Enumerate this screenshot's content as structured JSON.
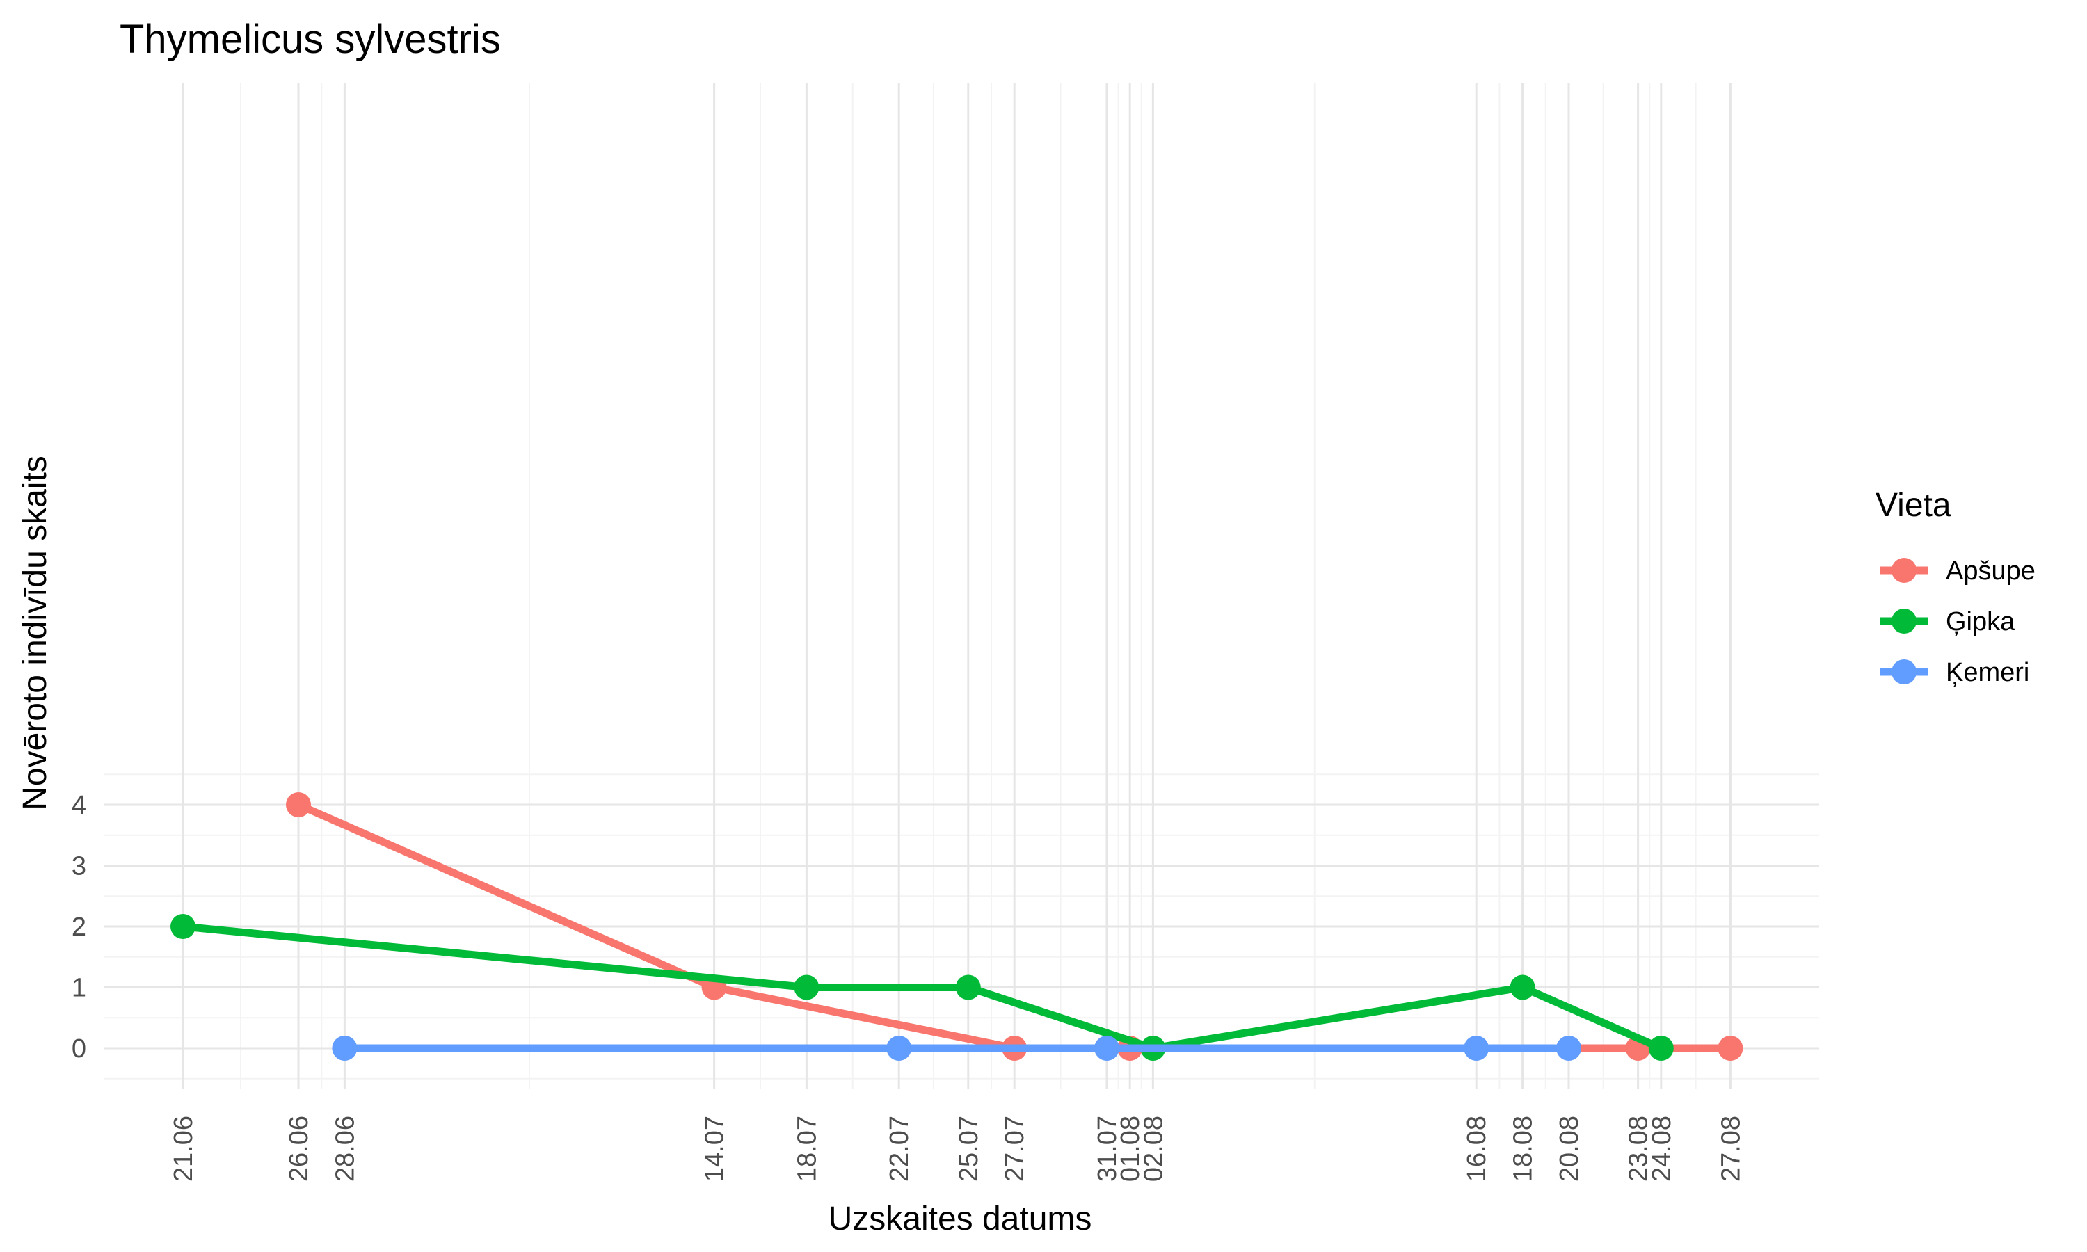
{
  "chart_data": {
    "type": "line",
    "title": "Thymelicus sylvestris",
    "xlabel": "Uzskaites datums",
    "ylabel": "Novēroto indivīdu skaits",
    "x_ticks": [
      "21.06",
      "26.06",
      "28.06",
      "14.07",
      "18.07",
      "22.07",
      "25.07",
      "27.07",
      "31.07",
      "01.08",
      "02.08",
      "16.08",
      "18.08",
      "20.08",
      "23.08",
      "24.08",
      "27.08"
    ],
    "y_ticks": [
      0,
      1,
      2,
      3,
      4
    ],
    "ylim": [
      -0.75,
      5
    ],
    "grid": true,
    "legend_title": "Vieta",
    "legend_position": "right",
    "series": [
      {
        "name": "Apšupe",
        "color": "#F8766D",
        "points": [
          {
            "x": "26.06",
            "y": 4
          },
          {
            "x": "14.07",
            "y": 1
          },
          {
            "x": "27.07",
            "y": 0
          },
          {
            "x": "01.08",
            "y": 0
          },
          {
            "x": "23.08",
            "y": 0
          },
          {
            "x": "27.08",
            "y": 0
          }
        ]
      },
      {
        "name": "Ģipka",
        "color": "#00BA38",
        "points": [
          {
            "x": "21.06",
            "y": 2
          },
          {
            "x": "18.07",
            "y": 1
          },
          {
            "x": "25.07",
            "y": 1
          },
          {
            "x": "02.08",
            "y": 0
          },
          {
            "x": "18.08",
            "y": 1
          },
          {
            "x": "24.08",
            "y": 0
          }
        ]
      },
      {
        "name": "Ķemeri",
        "color": "#619CFF",
        "points": [
          {
            "x": "28.06",
            "y": 0
          },
          {
            "x": "22.07",
            "y": 0
          },
          {
            "x": "31.07",
            "y": 0
          },
          {
            "x": "16.08",
            "y": 0
          },
          {
            "x": "20.08",
            "y": 0
          }
        ]
      }
    ]
  }
}
